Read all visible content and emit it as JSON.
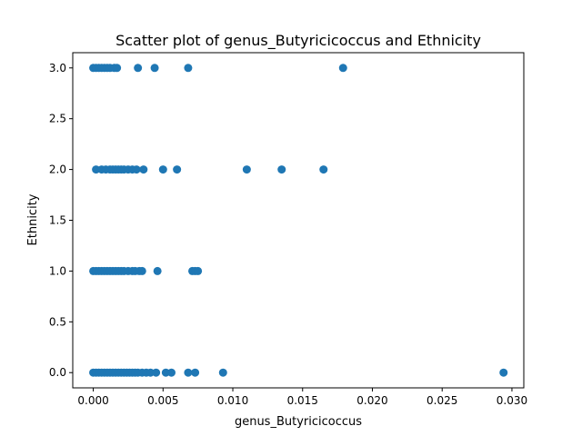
{
  "chart_data": {
    "type": "scatter",
    "title": "Scatter plot of genus_Butyricicoccus and Ethnicity",
    "xlabel": "genus_Butyricicoccus",
    "ylabel": "Ethnicity",
    "xlim": [
      -0.00147,
      0.03085
    ],
    "ylim": [
      -0.15,
      3.15
    ],
    "xticks": [
      0.0,
      0.005,
      0.01,
      0.015,
      0.02,
      0.025,
      0.03
    ],
    "xtick_labels": [
      "0.000",
      "0.005",
      "0.010",
      "0.015",
      "0.020",
      "0.025",
      "0.030"
    ],
    "yticks": [
      0.0,
      0.5,
      1.0,
      1.5,
      2.0,
      2.5,
      3.0
    ],
    "ytick_labels": [
      "0.0",
      "0.5",
      "1.0",
      "1.5",
      "2.0",
      "2.5",
      "3.0"
    ],
    "grid": false,
    "marker_color": "#1f77b4",
    "points": [
      {
        "x": 0.0,
        "y": 3
      },
      {
        "x": 0.0002,
        "y": 3
      },
      {
        "x": 0.0004,
        "y": 3
      },
      {
        "x": 0.0006,
        "y": 3
      },
      {
        "x": 0.0008,
        "y": 3
      },
      {
        "x": 0.001,
        "y": 3
      },
      {
        "x": 0.0012,
        "y": 3
      },
      {
        "x": 0.0015,
        "y": 3
      },
      {
        "x": 0.0017,
        "y": 3
      },
      {
        "x": 0.0032,
        "y": 3
      },
      {
        "x": 0.0044,
        "y": 3
      },
      {
        "x": 0.0068,
        "y": 3
      },
      {
        "x": 0.0179,
        "y": 3
      },
      {
        "x": 0.0002,
        "y": 2
      },
      {
        "x": 0.0006,
        "y": 2
      },
      {
        "x": 0.0009,
        "y": 2
      },
      {
        "x": 0.0012,
        "y": 2
      },
      {
        "x": 0.0014,
        "y": 2
      },
      {
        "x": 0.0016,
        "y": 2
      },
      {
        "x": 0.0018,
        "y": 2
      },
      {
        "x": 0.002,
        "y": 2
      },
      {
        "x": 0.0022,
        "y": 2
      },
      {
        "x": 0.0025,
        "y": 2
      },
      {
        "x": 0.0028,
        "y": 2
      },
      {
        "x": 0.0031,
        "y": 2
      },
      {
        "x": 0.0036,
        "y": 2
      },
      {
        "x": 0.005,
        "y": 2
      },
      {
        "x": 0.006,
        "y": 2
      },
      {
        "x": 0.011,
        "y": 2
      },
      {
        "x": 0.0135,
        "y": 2
      },
      {
        "x": 0.0165,
        "y": 2
      },
      {
        "x": 0.0,
        "y": 1
      },
      {
        "x": 0.0002,
        "y": 1
      },
      {
        "x": 0.0004,
        "y": 1
      },
      {
        "x": 0.0006,
        "y": 1
      },
      {
        "x": 0.0008,
        "y": 1
      },
      {
        "x": 0.001,
        "y": 1
      },
      {
        "x": 0.0012,
        "y": 1
      },
      {
        "x": 0.0014,
        "y": 1
      },
      {
        "x": 0.0016,
        "y": 1
      },
      {
        "x": 0.0018,
        "y": 1
      },
      {
        "x": 0.002,
        "y": 1
      },
      {
        "x": 0.0022,
        "y": 1
      },
      {
        "x": 0.0025,
        "y": 1
      },
      {
        "x": 0.0028,
        "y": 1
      },
      {
        "x": 0.003,
        "y": 1
      },
      {
        "x": 0.0033,
        "y": 1
      },
      {
        "x": 0.0035,
        "y": 1
      },
      {
        "x": 0.0046,
        "y": 1
      },
      {
        "x": 0.0071,
        "y": 1
      },
      {
        "x": 0.0073,
        "y": 1
      },
      {
        "x": 0.0075,
        "y": 1
      },
      {
        "x": 0.0,
        "y": 0
      },
      {
        "x": 0.0002,
        "y": 0
      },
      {
        "x": 0.0004,
        "y": 0
      },
      {
        "x": 0.0006,
        "y": 0
      },
      {
        "x": 0.0008,
        "y": 0
      },
      {
        "x": 0.001,
        "y": 0
      },
      {
        "x": 0.0012,
        "y": 0
      },
      {
        "x": 0.0014,
        "y": 0
      },
      {
        "x": 0.0016,
        "y": 0
      },
      {
        "x": 0.0018,
        "y": 0
      },
      {
        "x": 0.002,
        "y": 0
      },
      {
        "x": 0.0022,
        "y": 0
      },
      {
        "x": 0.0024,
        "y": 0
      },
      {
        "x": 0.0026,
        "y": 0
      },
      {
        "x": 0.0028,
        "y": 0
      },
      {
        "x": 0.003,
        "y": 0
      },
      {
        "x": 0.0032,
        "y": 0
      },
      {
        "x": 0.0035,
        "y": 0
      },
      {
        "x": 0.0038,
        "y": 0
      },
      {
        "x": 0.0041,
        "y": 0
      },
      {
        "x": 0.0045,
        "y": 0
      },
      {
        "x": 0.0052,
        "y": 0
      },
      {
        "x": 0.0056,
        "y": 0
      },
      {
        "x": 0.0068,
        "y": 0
      },
      {
        "x": 0.0073,
        "y": 0
      },
      {
        "x": 0.0093,
        "y": 0
      },
      {
        "x": 0.0294,
        "y": 0
      }
    ]
  }
}
